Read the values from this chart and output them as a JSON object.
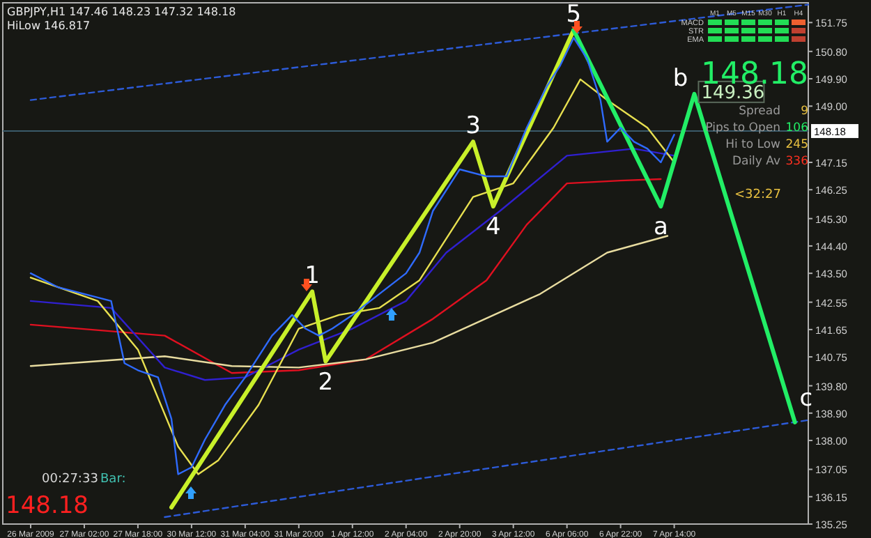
{
  "chart_data": {
    "type": "line",
    "categories": [
      "26 Mar 2009",
      null,
      null,
      null,
      null,
      null,
      null,
      null,
      "27 Mar 02:00",
      null,
      null,
      null,
      null,
      null,
      null,
      null,
      "27 Mar 18:00",
      null,
      null,
      null,
      null,
      null,
      null,
      null,
      "30 Mar 12:00",
      null,
      null,
      null,
      null,
      null,
      null,
      null,
      "31 Mar 04:00",
      null,
      null,
      null,
      null,
      null,
      null,
      null,
      "31 Mar 20:00",
      null,
      null,
      null,
      null,
      null,
      null,
      null,
      "1 Apr 12:00",
      null,
      null,
      null,
      null,
      null,
      null,
      null,
      "2 Apr 04:00",
      null,
      null,
      null,
      null,
      null,
      null,
      null,
      "2 Apr 20:00",
      null,
      null,
      null,
      null,
      null,
      null,
      null,
      "3 Apr 12:00",
      null,
      null,
      null,
      null,
      null,
      null,
      null,
      "6 Apr 06:00",
      null,
      null,
      null,
      null,
      null,
      null,
      null,
      "6 Apr 22:00",
      null,
      null,
      null,
      null,
      null,
      null,
      null,
      "7 Apr 14:00",
      null,
      null,
      null,
      null,
      null,
      null,
      null,
      null,
      null,
      null,
      null,
      null,
      null,
      null,
      null,
      null,
      null,
      null,
      null,
      null
    ],
    "ylim": [
      135.25,
      152.4
    ],
    "yticks": [
      {
        "value": 151.75,
        "label": "151.75"
      },
      {
        "value": 150.8,
        "label": "150.80"
      },
      {
        "value": 149.9,
        "label": "149.90"
      },
      {
        "value": 149,
        "label": "149.00"
      },
      {
        "value": 147.15,
        "label": "147.15"
      },
      {
        "value": 146.25,
        "label": "146.25"
      },
      {
        "value": 145.3,
        "label": "145.30"
      },
      {
        "value": 144.4,
        "label": "144.40"
      },
      {
        "value": 143.5,
        "label": "143.50"
      },
      {
        "value": 142.55,
        "label": "142.55"
      },
      {
        "value": 141.65,
        "label": "141.65"
      },
      {
        "value": 140.75,
        "label": "140.75"
      },
      {
        "value": 139.8,
        "label": "139.80"
      },
      {
        "value": 138.9,
        "label": "138.90"
      },
      {
        "value": 138,
        "label": "138.00"
      },
      {
        "value": 137.05,
        "label": "137.05"
      },
      {
        "value": 136.15,
        "label": "136.15"
      },
      {
        "value": 135.25,
        "label": "135.25"
      }
    ],
    "ref_lines": [
      {
        "axis": "y",
        "value": 148.18,
        "label": "148.18",
        "color": "#3a5a6a"
      }
    ],
    "series": [
      {
        "color": "#2f6bff",
        "values": [
          143.5,
          null,
          null,
          null,
          143.05,
          null,
          null,
          null,
          142.82,
          null,
          null,
          null,
          142.59,
          null,
          140.54,
          null,
          140.31,
          null,
          null,
          140.08,
          null,
          138.71,
          136.89,
          null,
          137.12,
          null,
          138.03,
          null,
          null,
          139.17,
          null,
          null,
          140.08,
          null,
          null,
          null,
          141.45,
          null,
          null,
          142.13,
          null,
          141.68,
          null,
          141.45,
          null,
          141.68,
          null,
          null,
          142.13,
          null,
          null,
          null,
          142.82,
          null,
          null,
          null,
          143.5,
          null,
          144.18,
          null,
          145.55,
          null,
          null,
          null,
          146.92,
          null,
          null,
          null,
          146.69,
          null,
          null,
          146.69,
          null,
          null,
          148.29,
          null,
          null,
          149.65,
          null,
          150.34,
          null,
          151.25,
          null,
          150.56,
          null,
          149.2,
          147.83,
          null,
          148.29,
          null,
          147.83,
          null,
          147.6,
          null,
          147.15,
          null,
          148.06,
          null,
          null,
          null,
          null,
          null,
          null,
          null,
          null,
          null,
          null,
          null,
          null,
          null,
          null,
          null,
          null,
          null,
          null,
          null,
          null
        ]
      },
      {
        "color": "#e01020",
        "values": [
          141.81,
          null,
          null,
          null,
          null,
          null,
          null,
          null,
          null,
          null,
          null,
          null,
          null,
          null,
          null,
          null,
          null,
          null,
          null,
          null,
          141.45,
          null,
          null,
          null,
          null,
          null,
          null,
          null,
          null,
          null,
          140.22,
          null,
          null,
          null,
          null,
          null,
          null,
          null,
          null,
          null,
          140.31,
          null,
          null,
          null,
          null,
          null,
          null,
          null,
          null,
          null,
          140.67,
          null,
          null,
          null,
          null,
          null,
          null,
          null,
          null,
          null,
          142.0,
          null,
          null,
          null,
          null,
          null,
          null,
          null,
          143.27,
          null,
          null,
          null,
          null,
          null,
          145.1,
          null,
          null,
          null,
          null,
          null,
          146.46,
          null,
          null,
          null,
          null,
          null,
          null,
          null,
          146.55,
          null,
          null,
          null,
          null,
          null,
          146.6,
          null,
          null,
          null,
          null,
          null,
          null,
          null,
          null,
          null,
          null,
          null,
          null,
          null,
          null,
          null,
          null,
          null,
          null,
          null,
          null,
          null,
          null
        ]
      },
      {
        "color": "#e8dca0",
        "values": [
          140.45,
          null,
          null,
          null,
          null,
          null,
          null,
          null,
          null,
          null,
          null,
          null,
          null,
          null,
          null,
          null,
          null,
          null,
          null,
          null,
          140.77,
          null,
          null,
          null,
          null,
          null,
          null,
          null,
          null,
          null,
          140.45,
          null,
          null,
          null,
          null,
          null,
          null,
          null,
          null,
          null,
          140.4,
          null,
          null,
          null,
          null,
          null,
          null,
          null,
          null,
          null,
          140.67,
          null,
          null,
          null,
          null,
          null,
          null,
          null,
          null,
          null,
          141.22,
          null,
          null,
          null,
          null,
          null,
          null,
          null,
          null,
          null,
          null,
          null,
          null,
          null,
          null,
          null,
          142.82,
          null,
          null,
          null,
          null,
          null,
          null,
          null,
          null,
          null,
          144.18,
          null,
          null,
          null,
          null,
          null,
          null,
          null,
          null,
          144.73,
          null,
          null,
          null,
          null,
          null,
          null,
          null,
          null,
          null,
          null,
          null,
          null,
          null,
          null,
          null,
          null,
          null,
          null,
          null,
          null,
          null
        ]
      },
      {
        "color": "#3020d0",
        "values": [
          142.59,
          null,
          null,
          null,
          null,
          null,
          null,
          null,
          null,
          null,
          null,
          null,
          142.36,
          null,
          null,
          null,
          null,
          null,
          null,
          null,
          140.4,
          null,
          null,
          null,
          null,
          null,
          139.99,
          null,
          null,
          null,
          null,
          null,
          140.08,
          null,
          null,
          null,
          null,
          null,
          null,
          null,
          140.99,
          null,
          null,
          null,
          null,
          null,
          null,
          null,
          141.68,
          null,
          null,
          null,
          null,
          null,
          null,
          null,
          142.59,
          null,
          null,
          null,
          null,
          null,
          144.18,
          null,
          null,
          null,
          null,
          null,
          null,
          null,
          145.55,
          null,
          null,
          null,
          null,
          null,
          null,
          null,
          null,
          null,
          147.37,
          null,
          null,
          null,
          null,
          null,
          null,
          null,
          null,
          null,
          147.6,
          null,
          null,
          null,
          null,
          null,
          147.37,
          null,
          null,
          null,
          null,
          null,
          null,
          null,
          null,
          null,
          null,
          null,
          null,
          null,
          null,
          null,
          null,
          null,
          null,
          null,
          null
        ]
      },
      {
        "color": "#e8e050",
        "values": [
          143.36,
          null,
          null,
          null,
          null,
          null,
          null,
          null,
          null,
          null,
          142.59,
          null,
          null,
          null,
          null,
          null,
          140.99,
          null,
          null,
          null,
          null,
          null,
          137.8,
          null,
          null,
          136.89,
          null,
          null,
          137.35,
          null,
          null,
          null,
          null,
          null,
          139.17,
          null,
          null,
          null,
          null,
          null,
          141.68,
          null,
          null,
          null,
          null,
          null,
          142.13,
          null,
          null,
          null,
          null,
          null,
          142.36,
          null,
          null,
          null,
          null,
          null,
          143.27,
          null,
          null,
          null,
          null,
          null,
          null,
          null,
          146.01,
          null,
          null,
          null,
          null,
          null,
          146.46,
          null,
          null,
          null,
          null,
          null,
          148.29,
          null,
          null,
          null,
          149.88,
          null,
          null,
          null,
          149.2,
          null,
          null,
          null,
          null,
          null,
          148.29,
          null,
          null,
          null,
          147.15,
          null,
          null,
          null,
          null,
          null,
          null,
          null,
          null,
          null,
          null,
          null,
          null,
          null,
          null,
          null,
          null,
          null,
          null,
          null,
          null
        ]
      },
      {
        "color": "#2d5bd8",
        "line_style": "dashed",
        "values": [
          149.2,
          null,
          null,
          null,
          null,
          null,
          null,
          null,
          null,
          null,
          null,
          null,
          null,
          null,
          null,
          null,
          null,
          null,
          null,
          null,
          null,
          null,
          null,
          null,
          null,
          null,
          null,
          null,
          null,
          null,
          null,
          null,
          null,
          null,
          null,
          null,
          null,
          null,
          null,
          null,
          null,
          null,
          null,
          null,
          null,
          null,
          null,
          null,
          null,
          null,
          null,
          null,
          null,
          null,
          null,
          null,
          null,
          null,
          null,
          null,
          null,
          null,
          null,
          null,
          null,
          null,
          null,
          null,
          null,
          null,
          null,
          null,
          null,
          null,
          null,
          null,
          null,
          null,
          null,
          null,
          null,
          null,
          null,
          null,
          null,
          null,
          null,
          null,
          null,
          null,
          null,
          null,
          null,
          null,
          null,
          null,
          null,
          null,
          null,
          null,
          null,
          null,
          null,
          null,
          null,
          null,
          null,
          null,
          null,
          null,
          null,
          null,
          null,
          null,
          null,
          null,
          152.34
        ]
      },
      {
        "color": "#2d5bd8",
        "line_style": "dashed",
        "values": [
          null,
          null,
          null,
          null,
          null,
          null,
          null,
          null,
          null,
          null,
          null,
          null,
          null,
          null,
          null,
          null,
          null,
          null,
          null,
          null,
          135.48,
          null,
          null,
          null,
          null,
          null,
          null,
          null,
          null,
          null,
          null,
          null,
          null,
          null,
          null,
          null,
          null,
          null,
          null,
          null,
          null,
          null,
          null,
          null,
          null,
          null,
          null,
          null,
          null,
          null,
          null,
          null,
          null,
          null,
          null,
          null,
          null,
          null,
          null,
          null,
          null,
          null,
          null,
          null,
          null,
          null,
          null,
          null,
          null,
          null,
          null,
          null,
          null,
          null,
          null,
          null,
          null,
          null,
          null,
          null,
          null,
          null,
          null,
          null,
          null,
          null,
          null,
          null,
          null,
          null,
          null,
          null,
          null,
          null,
          null,
          null,
          null,
          null,
          null,
          null,
          null,
          null,
          null,
          null,
          null,
          null,
          null,
          null,
          null,
          null,
          null,
          null,
          null,
          null,
          null,
          null,
          138.67
        ]
      },
      {
        "color": "#c8f02a",
        "values": [
          null,
          null,
          null,
          null,
          null,
          null,
          null,
          null,
          null,
          null,
          null,
          null,
          null,
          null,
          null,
          null,
          null,
          null,
          null,
          null,
          null,
          135.8,
          null,
          null,
          null,
          null,
          null,
          null,
          null,
          null,
          null,
          null,
          null,
          null,
          null,
          null,
          null,
          null,
          null,
          null,
          null,
          null,
          142.9,
          null,
          140.6,
          null,
          null,
          null,
          null,
          null,
          null,
          null,
          null,
          null,
          null,
          null,
          null,
          null,
          null,
          null,
          null,
          null,
          null,
          null,
          null,
          null,
          147.83,
          null,
          null,
          145.7,
          null,
          null,
          null,
          null,
          null,
          null,
          null,
          null,
          null,
          null,
          null,
          151.5,
          null,
          null,
          null,
          null,
          null,
          null,
          null,
          null,
          null,
          null,
          null,
          null,
          null,
          null,
          null,
          null,
          null,
          null,
          null,
          null,
          null,
          null,
          null,
          null,
          null,
          null,
          null,
          null,
          null,
          null,
          null,
          null,
          null,
          null,
          null
        ]
      },
      {
        "color": "#22ee66",
        "values": [
          null,
          null,
          null,
          null,
          null,
          null,
          null,
          null,
          null,
          null,
          null,
          null,
          null,
          null,
          null,
          null,
          null,
          null,
          null,
          null,
          null,
          null,
          null,
          null,
          null,
          null,
          null,
          null,
          null,
          null,
          null,
          null,
          null,
          null,
          null,
          null,
          null,
          null,
          null,
          null,
          null,
          null,
          null,
          null,
          null,
          null,
          null,
          null,
          null,
          null,
          null,
          null,
          null,
          null,
          null,
          null,
          null,
          null,
          null,
          null,
          null,
          null,
          null,
          null,
          null,
          null,
          null,
          null,
          null,
          null,
          null,
          null,
          null,
          null,
          null,
          null,
          null,
          null,
          null,
          null,
          null,
          151.5,
          null,
          null,
          null,
          null,
          null,
          null,
          null,
          null,
          null,
          null,
          null,
          null,
          145.7,
          null,
          null,
          null,
          null,
          149.4,
          null,
          null,
          null,
          null,
          null,
          null,
          null,
          null,
          null,
          null,
          null,
          null,
          null,
          null,
          138.6,
          null,
          null
        ]
      }
    ],
    "annotations": [
      "1",
      "2",
      "3",
      "4",
      "5",
      "a",
      "b",
      "c",
      "149.36",
      "GBPJPY,H1  147.46 148.23 147.32 148.18",
      "HiLow 146.817",
      "00:27:33",
      "Bar:",
      "148.18",
      "148.18",
      "Spread",
      "9",
      "Pips to Open",
      "106",
      "Hi to Low",
      "245",
      "Daily Av",
      "336",
      "<32:27",
      "M1",
      "M5",
      "M15",
      "M30",
      "H1",
      "H4",
      "MACD",
      "STR",
      "EMA"
    ]
  }
}
